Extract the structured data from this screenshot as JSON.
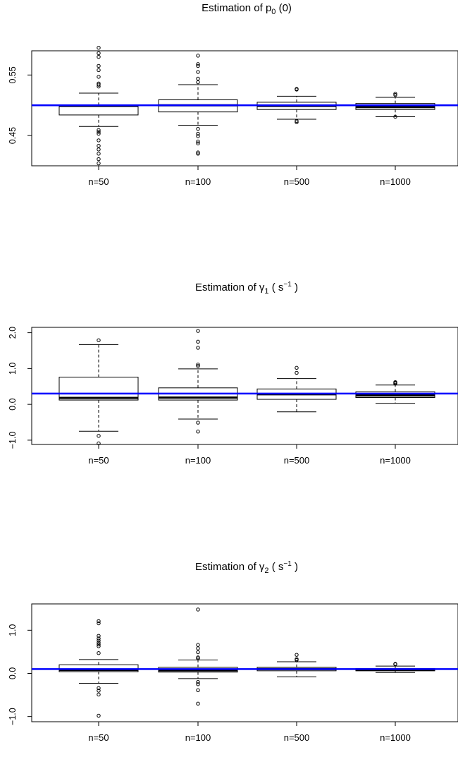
{
  "chart_data": [
    {
      "type": "boxplot",
      "title": {
        "pre": "Estimation of ",
        "sym": "p",
        "sub": "0",
        "post": " (0)",
        "sup": ""
      },
      "categories": [
        "n=50",
        "n=100",
        "n=500",
        "n=1000"
      ],
      "ylim": [
        0.4,
        0.59
      ],
      "yticks": [
        0.45,
        0.55
      ],
      "ytick_labels": [
        "0.45",
        "0.55"
      ],
      "reference_line": 0.5,
      "reference_color": "#0000ff",
      "boxes": [
        {
          "min": 0.465,
          "q1": 0.484,
          "median": 0.499,
          "q3": 0.5,
          "max": 0.52,
          "outliers": [
            0.404,
            0.411,
            0.42,
            0.427,
            0.433,
            0.442,
            0.453,
            0.456,
            0.459,
            0.531,
            0.534,
            0.536,
            0.547,
            0.558,
            0.565,
            0.58,
            0.586,
            0.595
          ]
        },
        {
          "min": 0.467,
          "q1": 0.489,
          "median": 0.5,
          "q3": 0.509,
          "max": 0.534,
          "outliers": [
            0.42,
            0.422,
            0.437,
            0.44,
            0.449,
            0.453,
            0.461,
            0.538,
            0.544,
            0.555,
            0.565,
            0.568,
            0.582
          ]
        },
        {
          "min": 0.477,
          "q1": 0.493,
          "median": 0.499,
          "q3": 0.505,
          "max": 0.515,
          "outliers": [
            0.472,
            0.474,
            0.526,
            0.527
          ]
        },
        {
          "min": 0.481,
          "q1": 0.493,
          "median": 0.497,
          "q3": 0.503,
          "max": 0.513,
          "outliers": [
            0.481,
            0.517,
            0.519
          ]
        }
      ]
    },
    {
      "type": "boxplot",
      "title": {
        "pre": "Estimation of ",
        "sym": "γ",
        "sub": "1",
        "post": " ( s",
        "sup": "−1",
        "tail": " )"
      },
      "categories": [
        "n=50",
        "n=100",
        "n=500",
        "n=1000"
      ],
      "ylim": [
        -1.12,
        2.15
      ],
      "yticks": [
        -1.0,
        0.0,
        1.0,
        2.0
      ],
      "ytick_labels": [
        "−1.0",
        "0.0",
        "1.0",
        "2.0"
      ],
      "reference_line": 0.3,
      "reference_color": "#0000ff",
      "boxes": [
        {
          "min": -0.75,
          "q1": 0.12,
          "median": 0.18,
          "q3": 0.76,
          "max": 1.67,
          "outliers": [
            -1.09,
            -0.88,
            1.79
          ]
        },
        {
          "min": -0.41,
          "q1": 0.12,
          "median": 0.19,
          "q3": 0.46,
          "max": 0.99,
          "outliers": [
            -0.76,
            -0.51,
            1.07,
            1.11,
            1.58,
            1.75,
            2.05
          ]
        },
        {
          "min": -0.21,
          "q1": 0.14,
          "median": 0.28,
          "q3": 0.43,
          "max": 0.72,
          "outliers": [
            0.88,
            1.02
          ]
        },
        {
          "min": 0.03,
          "q1": 0.19,
          "median": 0.25,
          "q3": 0.35,
          "max": 0.54,
          "outliers": [
            0.58,
            0.6,
            0.62
          ]
        }
      ]
    },
    {
      "type": "boxplot",
      "title": {
        "pre": "Estimation of ",
        "sym": "γ",
        "sub": "2",
        "post": " ( s",
        "sup": "−1",
        "tail": " )"
      },
      "categories": [
        "n=50",
        "n=100",
        "n=500",
        "n=1000"
      ],
      "ylim": [
        -1.12,
        1.61
      ],
      "yticks": [
        -1.0,
        0.0,
        1.0
      ],
      "ytick_labels": [
        "−1.0",
        "0.0",
        "1.0"
      ],
      "reference_line": 0.1,
      "reference_color": "#0000ff",
      "boxes": [
        {
          "min": -0.23,
          "q1": 0.04,
          "median": 0.08,
          "q3": 0.2,
          "max": 0.32,
          "outliers": [
            -0.98,
            -0.49,
            -0.4,
            -0.34,
            0.47,
            0.63,
            0.67,
            0.71,
            0.76,
            0.81,
            0.87,
            1.16,
            1.21
          ]
        },
        {
          "min": -0.12,
          "q1": 0.03,
          "median": 0.07,
          "q3": 0.14,
          "max": 0.31,
          "outliers": [
            -0.7,
            -0.39,
            -0.25,
            -0.2,
            0.35,
            0.37,
            0.49,
            0.58,
            0.66,
            1.48
          ]
        },
        {
          "min": -0.08,
          "q1": 0.06,
          "median": 0.1,
          "q3": 0.14,
          "max": 0.27,
          "outliers": [
            0.31,
            0.33,
            0.43
          ]
        },
        {
          "min": 0.02,
          "q1": 0.06,
          "median": 0.08,
          "q3": 0.11,
          "max": 0.17,
          "outliers": [
            0.21,
            0.22
          ]
        }
      ]
    }
  ]
}
